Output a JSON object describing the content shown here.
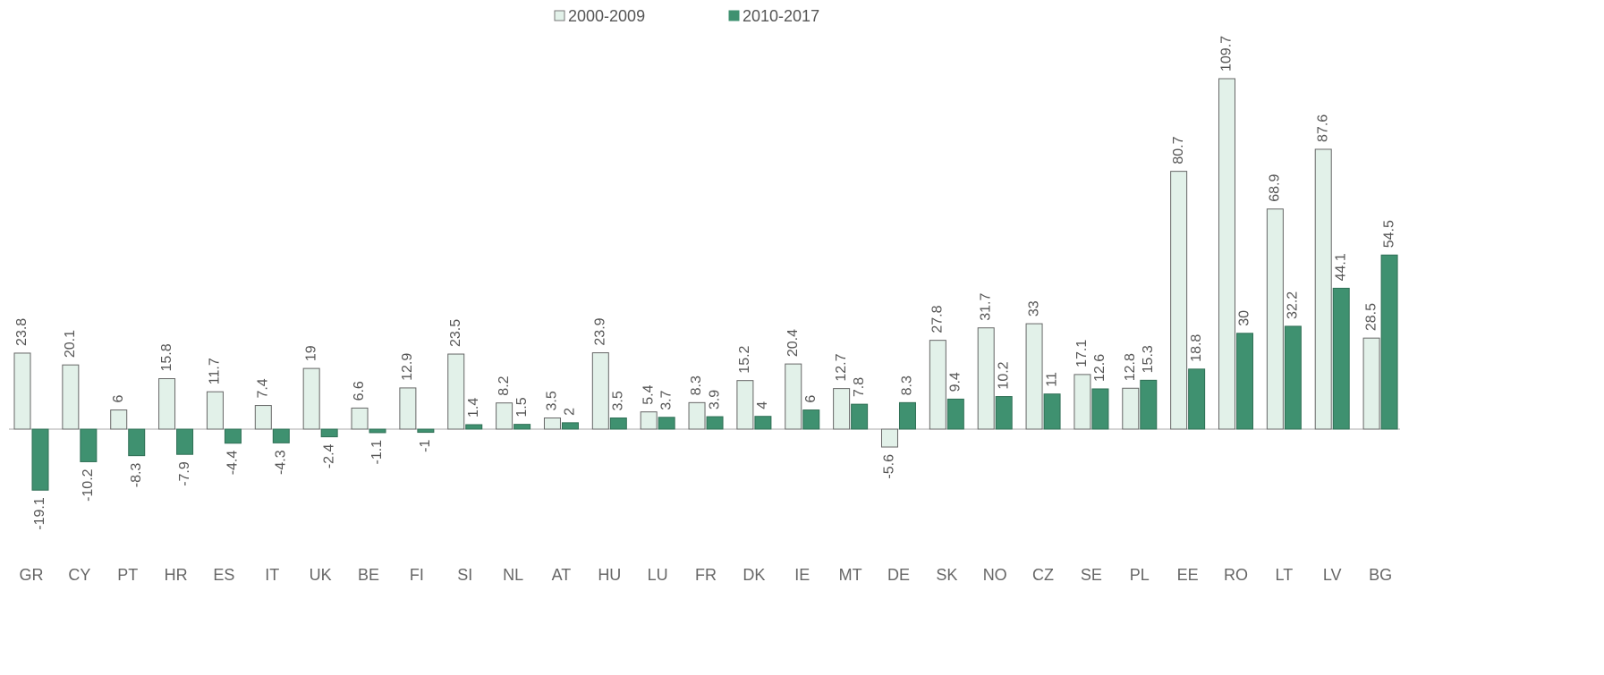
{
  "chart_data": {
    "type": "bar",
    "categories": [
      "GR",
      "CY",
      "PT",
      "HR",
      "ES",
      "IT",
      "UK",
      "BE",
      "FI",
      "SI",
      "NL",
      "AT",
      "HU",
      "LU",
      "FR",
      "DK",
      "IE",
      "MT",
      "DE",
      "SK",
      "NO",
      "CZ",
      "SE",
      "PL",
      "EE",
      "RO",
      "LT",
      "LV",
      "BG"
    ],
    "series": [
      {
        "name": "2000-2009",
        "color": "#e2f1e9",
        "values": [
          23.8,
          20.1,
          6,
          15.8,
          11.7,
          7.4,
          19,
          6.6,
          12.9,
          23.5,
          8.2,
          3.5,
          23.9,
          5.4,
          8.3,
          15.2,
          20.4,
          12.7,
          -5.6,
          27.8,
          31.7,
          33,
          17.1,
          12.8,
          80.7,
          109.7,
          68.9,
          87.6,
          28.5
        ]
      },
      {
        "name": "2010-2017",
        "color": "#3f9170",
        "values": [
          -19.1,
          -10.2,
          -8.3,
          -7.9,
          -4.4,
          -4.3,
          -2.4,
          -1.1,
          -1,
          1.4,
          1.5,
          2,
          3.5,
          3.7,
          3.9,
          4,
          6,
          7.8,
          8.3,
          9.4,
          10.2,
          11,
          12.6,
          15.3,
          18.8,
          30,
          32.2,
          44.1,
          54.5
        ]
      }
    ],
    "legend": "top"
  }
}
